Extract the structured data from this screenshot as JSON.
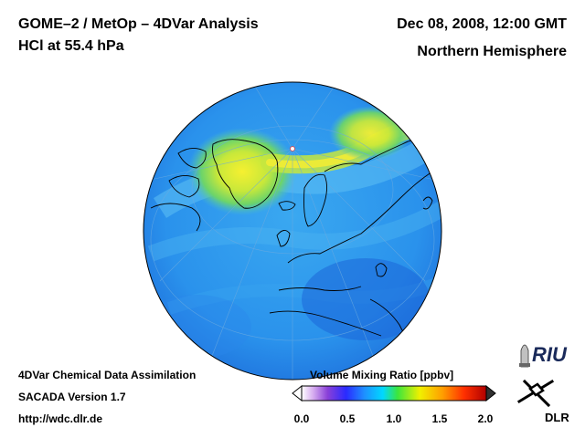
{
  "header": {
    "title": "GOME–2 / MetOp – 4DVar Analysis",
    "species": "HCl at 55.4 hPa",
    "datetime": "Dec 08, 2008, 12:00 GMT",
    "region": "Northern Hemisphere"
  },
  "footer": {
    "line1": "4DVar Chemical Data Assimilation",
    "line2": "SACADA Version 1.7",
    "line3": "http://wdc.dlr.de"
  },
  "colorbar": {
    "title": "Volume Mixing Ratio [ppbv]",
    "ticks": [
      "0.0",
      "0.5",
      "1.0",
      "1.5",
      "2.0"
    ],
    "range": [
      0.0,
      2.0
    ],
    "colors": [
      "#ffffff",
      "#c9a0e8",
      "#7a3ad0",
      "#2a2aff",
      "#1e90ff",
      "#00d8ff",
      "#3ce63c",
      "#f0f000",
      "#ffa000",
      "#ff3000",
      "#b00000"
    ]
  },
  "map": {
    "projection": "orthographic",
    "hemisphere": "north",
    "ocean_base_color": "#2a96ee",
    "high_color": "#f2ee28",
    "mid_color": "#8ad85a",
    "low_color": "#1e78e6"
  },
  "logos": {
    "riu": "RIU",
    "dlr": "DLR"
  }
}
